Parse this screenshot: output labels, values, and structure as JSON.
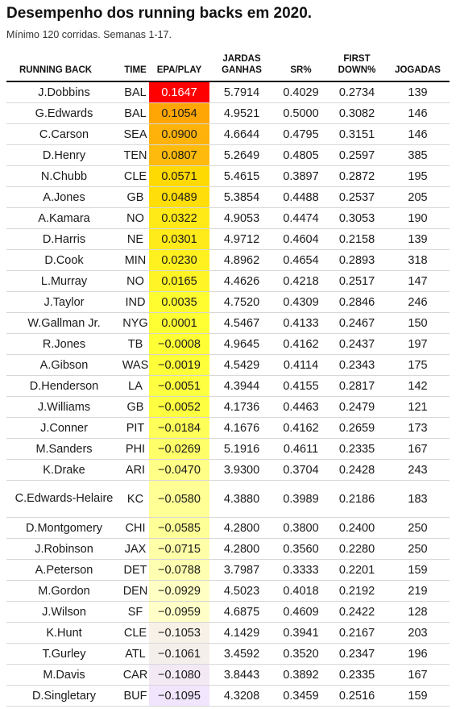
{
  "title": "Desempenho dos running backs em 2020.",
  "subtitle": "Mínimo 120 corridas. Semanas 1-17.",
  "headers": {
    "rb": "RUNNING BACK",
    "team": "TIME",
    "epa": "EPA/PLAY",
    "yards_1": "JARDAS",
    "yards_2": "GANHAS",
    "sr": "SR%",
    "fd_1": "FIRST",
    "fd_2": "DOWN%",
    "plays": "JOGADAS"
  },
  "colors": {
    "epa_high": "#ff0000",
    "epa_mid_orange": "#ff9900",
    "epa_mid_yellow": "#ffff33",
    "epa_zero_pale": "#ffffcc",
    "epa_low": "#efe4ff"
  },
  "chart_data": {
    "type": "table",
    "columns": [
      "RUNNING BACK",
      "TIME",
      "EPA/PLAY",
      "JARDAS GANHAS",
      "SR%",
      "FIRST DOWN%",
      "JOGADAS"
    ],
    "rows": [
      {
        "rb": "J.Dobbins",
        "team": "BAL",
        "epa": "0.1647",
        "yards": "5.7914",
        "sr": "0.4029",
        "fd": "0.2734",
        "plays": "139"
      },
      {
        "rb": "G.Edwards",
        "team": "BAL",
        "epa": "0.1054",
        "yards": "4.9521",
        "sr": "0.5000",
        "fd": "0.3082",
        "plays": "146"
      },
      {
        "rb": "C.Carson",
        "team": "SEA",
        "epa": "0.0900",
        "yards": "4.6644",
        "sr": "0.4795",
        "fd": "0.3151",
        "plays": "146"
      },
      {
        "rb": "D.Henry",
        "team": "TEN",
        "epa": "0.0807",
        "yards": "5.2649",
        "sr": "0.4805",
        "fd": "0.2597",
        "plays": "385"
      },
      {
        "rb": "N.Chubb",
        "team": "CLE",
        "epa": "0.0571",
        "yards": "5.4615",
        "sr": "0.3897",
        "fd": "0.2872",
        "plays": "195"
      },
      {
        "rb": "A.Jones",
        "team": "GB",
        "epa": "0.0489",
        "yards": "5.3854",
        "sr": "0.4488",
        "fd": "0.2537",
        "plays": "205"
      },
      {
        "rb": "A.Kamara",
        "team": "NO",
        "epa": "0.0322",
        "yards": "4.9053",
        "sr": "0.4474",
        "fd": "0.3053",
        "plays": "190"
      },
      {
        "rb": "D.Harris",
        "team": "NE",
        "epa": "0.0301",
        "yards": "4.9712",
        "sr": "0.4604",
        "fd": "0.2158",
        "plays": "139"
      },
      {
        "rb": "D.Cook",
        "team": "MIN",
        "epa": "0.0230",
        "yards": "4.8962",
        "sr": "0.4654",
        "fd": "0.2893",
        "plays": "318"
      },
      {
        "rb": "L.Murray",
        "team": "NO",
        "epa": "0.0165",
        "yards": "4.4626",
        "sr": "0.4218",
        "fd": "0.2517",
        "plays": "147"
      },
      {
        "rb": "J.Taylor",
        "team": "IND",
        "epa": "0.0035",
        "yards": "4.7520",
        "sr": "0.4309",
        "fd": "0.2846",
        "plays": "246"
      },
      {
        "rb": "W.Gallman Jr.",
        "team": "NYG",
        "epa": "0.0001",
        "yards": "4.5467",
        "sr": "0.4133",
        "fd": "0.2467",
        "plays": "150"
      },
      {
        "rb": "R.Jones",
        "team": "TB",
        "epa": "−0.0008",
        "yards": "4.9645",
        "sr": "0.4162",
        "fd": "0.2437",
        "plays": "197"
      },
      {
        "rb": "A.Gibson",
        "team": "WAS",
        "epa": "−0.0019",
        "yards": "4.5429",
        "sr": "0.4114",
        "fd": "0.2343",
        "plays": "175"
      },
      {
        "rb": "D.Henderson",
        "team": "LA",
        "epa": "−0.0051",
        "yards": "4.3944",
        "sr": "0.4155",
        "fd": "0.2817",
        "plays": "142"
      },
      {
        "rb": "J.Williams",
        "team": "GB",
        "epa": "−0.0052",
        "yards": "4.1736",
        "sr": "0.4463",
        "fd": "0.2479",
        "plays": "121"
      },
      {
        "rb": "J.Conner",
        "team": "PIT",
        "epa": "−0.0184",
        "yards": "4.1676",
        "sr": "0.4162",
        "fd": "0.2659",
        "plays": "173"
      },
      {
        "rb": "M.Sanders",
        "team": "PHI",
        "epa": "−0.0269",
        "yards": "5.1916",
        "sr": "0.4611",
        "fd": "0.2335",
        "plays": "167"
      },
      {
        "rb": "K.Drake",
        "team": "ARI",
        "epa": "−0.0470",
        "yards": "3.9300",
        "sr": "0.3704",
        "fd": "0.2428",
        "plays": "243"
      },
      {
        "rb": "C.Edwards-Helaire",
        "team": "KC",
        "epa": "−0.0580",
        "yards": "4.3880",
        "sr": "0.3989",
        "fd": "0.2186",
        "plays": "183"
      },
      {
        "rb": "D.Montgomery",
        "team": "CHI",
        "epa": "−0.0585",
        "yards": "4.2800",
        "sr": "0.3800",
        "fd": "0.2400",
        "plays": "250"
      },
      {
        "rb": "J.Robinson",
        "team": "JAX",
        "epa": "−0.0715",
        "yards": "4.2800",
        "sr": "0.3560",
        "fd": "0.2280",
        "plays": "250"
      },
      {
        "rb": "A.Peterson",
        "team": "DET",
        "epa": "−0.0788",
        "yards": "3.7987",
        "sr": "0.3333",
        "fd": "0.2201",
        "plays": "159"
      },
      {
        "rb": "M.Gordon",
        "team": "DEN",
        "epa": "−0.0929",
        "yards": "4.5023",
        "sr": "0.4018",
        "fd": "0.2192",
        "plays": "219"
      },
      {
        "rb": "J.Wilson",
        "team": "SF",
        "epa": "−0.0959",
        "yards": "4.6875",
        "sr": "0.4609",
        "fd": "0.2422",
        "plays": "128"
      },
      {
        "rb": "K.Hunt",
        "team": "CLE",
        "epa": "−0.1053",
        "yards": "4.1429",
        "sr": "0.3941",
        "fd": "0.2167",
        "plays": "203"
      },
      {
        "rb": "T.Gurley",
        "team": "ATL",
        "epa": "−0.1061",
        "yards": "3.4592",
        "sr": "0.3520",
        "fd": "0.2347",
        "plays": "196"
      },
      {
        "rb": "M.Davis",
        "team": "CAR",
        "epa": "−0.1080",
        "yards": "3.8443",
        "sr": "0.3892",
        "fd": "0.2335",
        "plays": "167"
      },
      {
        "rb": "D.Singletary",
        "team": "BUF",
        "epa": "−0.1095",
        "yards": "4.3208",
        "sr": "0.3459",
        "fd": "0.2516",
        "plays": "159"
      }
    ]
  }
}
